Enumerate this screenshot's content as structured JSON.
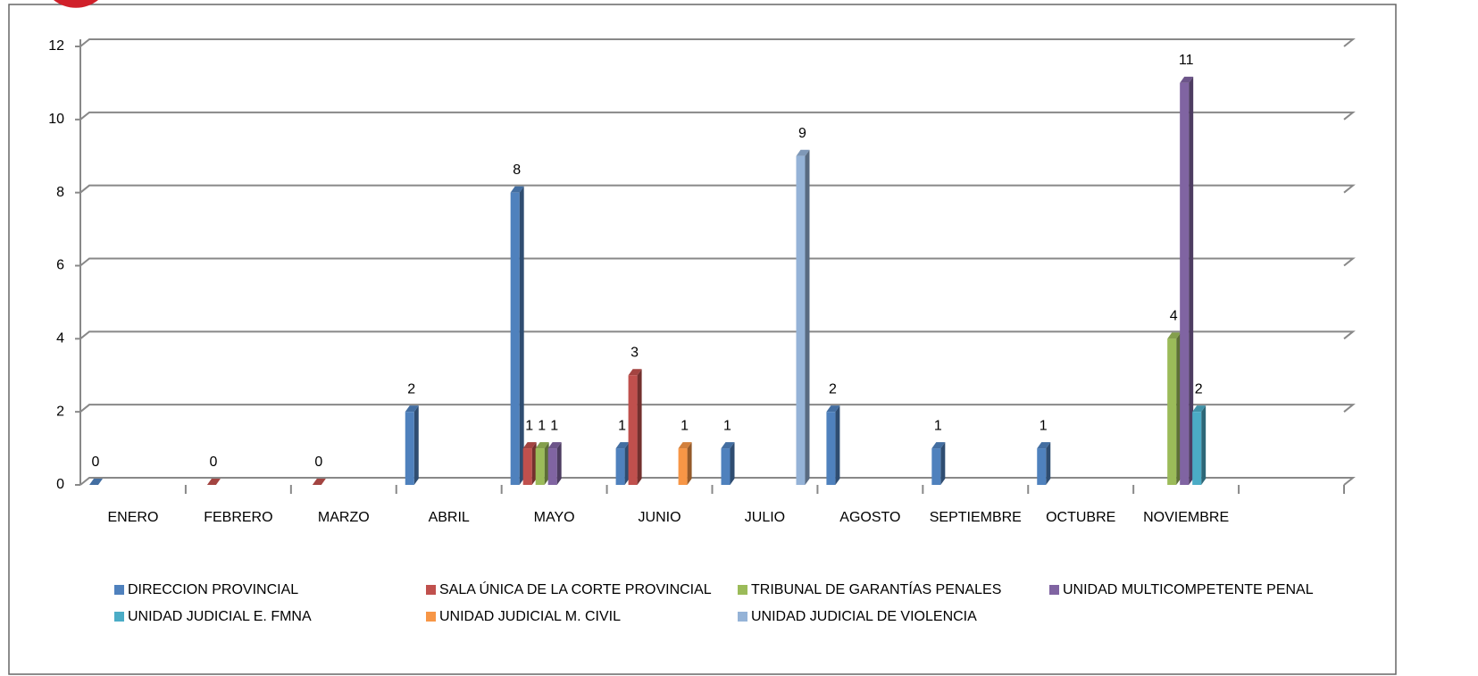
{
  "chart_data": {
    "type": "bar",
    "categories": [
      "ENERO",
      "FEBRERO",
      "MARZO",
      "ABRIL",
      "MAYO",
      "JUNIO",
      "JULIO",
      "AGOSTO",
      "SEPTIEMBRE",
      "OCTUBRE",
      "NOVIEMBRE",
      null
    ],
    "series": [
      {
        "name": "DIRECCION PROVINCIAL",
        "color": "#4f81bd",
        "values": [
          0,
          null,
          null,
          2,
          8,
          1,
          1,
          2,
          1,
          1,
          null,
          null
        ]
      },
      {
        "name": "SALA ÚNICA DE LA CORTE PROVINCIAL",
        "color": "#c0504d",
        "values": [
          null,
          0,
          0,
          null,
          1,
          3,
          null,
          null,
          null,
          null,
          null,
          null
        ]
      },
      {
        "name": "TRIBUNAL DE GARANTÍAS PENALES",
        "color": "#9bbb59",
        "values": [
          null,
          null,
          null,
          null,
          1,
          null,
          null,
          null,
          null,
          null,
          4,
          null
        ]
      },
      {
        "name": "UNIDAD MULTICOMPETENTE PENAL",
        "color": "#8064a2",
        "values": [
          null,
          null,
          null,
          null,
          1,
          null,
          null,
          null,
          null,
          null,
          11,
          null
        ]
      },
      {
        "name": "UNIDAD JUDICIAL E. FMNA",
        "color": "#4bacc6",
        "values": [
          null,
          null,
          null,
          null,
          null,
          null,
          null,
          null,
          null,
          null,
          2,
          null
        ]
      },
      {
        "name": "UNIDAD JUDICIAL M. CIVIL",
        "color": "#f79646",
        "values": [
          null,
          null,
          null,
          null,
          null,
          1,
          null,
          null,
          null,
          null,
          null,
          null
        ]
      },
      {
        "name": "UNIDAD JUDICIAL DE VIOLENCIA",
        "color": "#95b3d7",
        "values": [
          null,
          null,
          null,
          null,
          null,
          null,
          9,
          null,
          null,
          null,
          null,
          null
        ]
      }
    ],
    "ylim": [
      0,
      12
    ],
    "yticks": [
      0,
      2,
      4,
      6,
      8,
      10,
      12
    ],
    "grid": true,
    "legend": "bottom"
  }
}
